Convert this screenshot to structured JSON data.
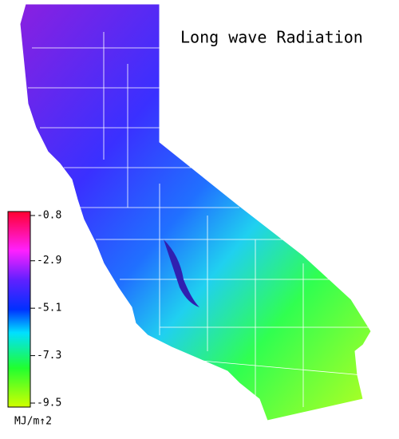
{
  "title": "Long wave Radiation",
  "colorbar": {
    "range": [
      -9.5,
      -0.8
    ],
    "ticks": [
      -0.8,
      -2.9,
      -5.1,
      -7.3,
      -9.5
    ],
    "unit": "MJ/m↑2"
  }
}
